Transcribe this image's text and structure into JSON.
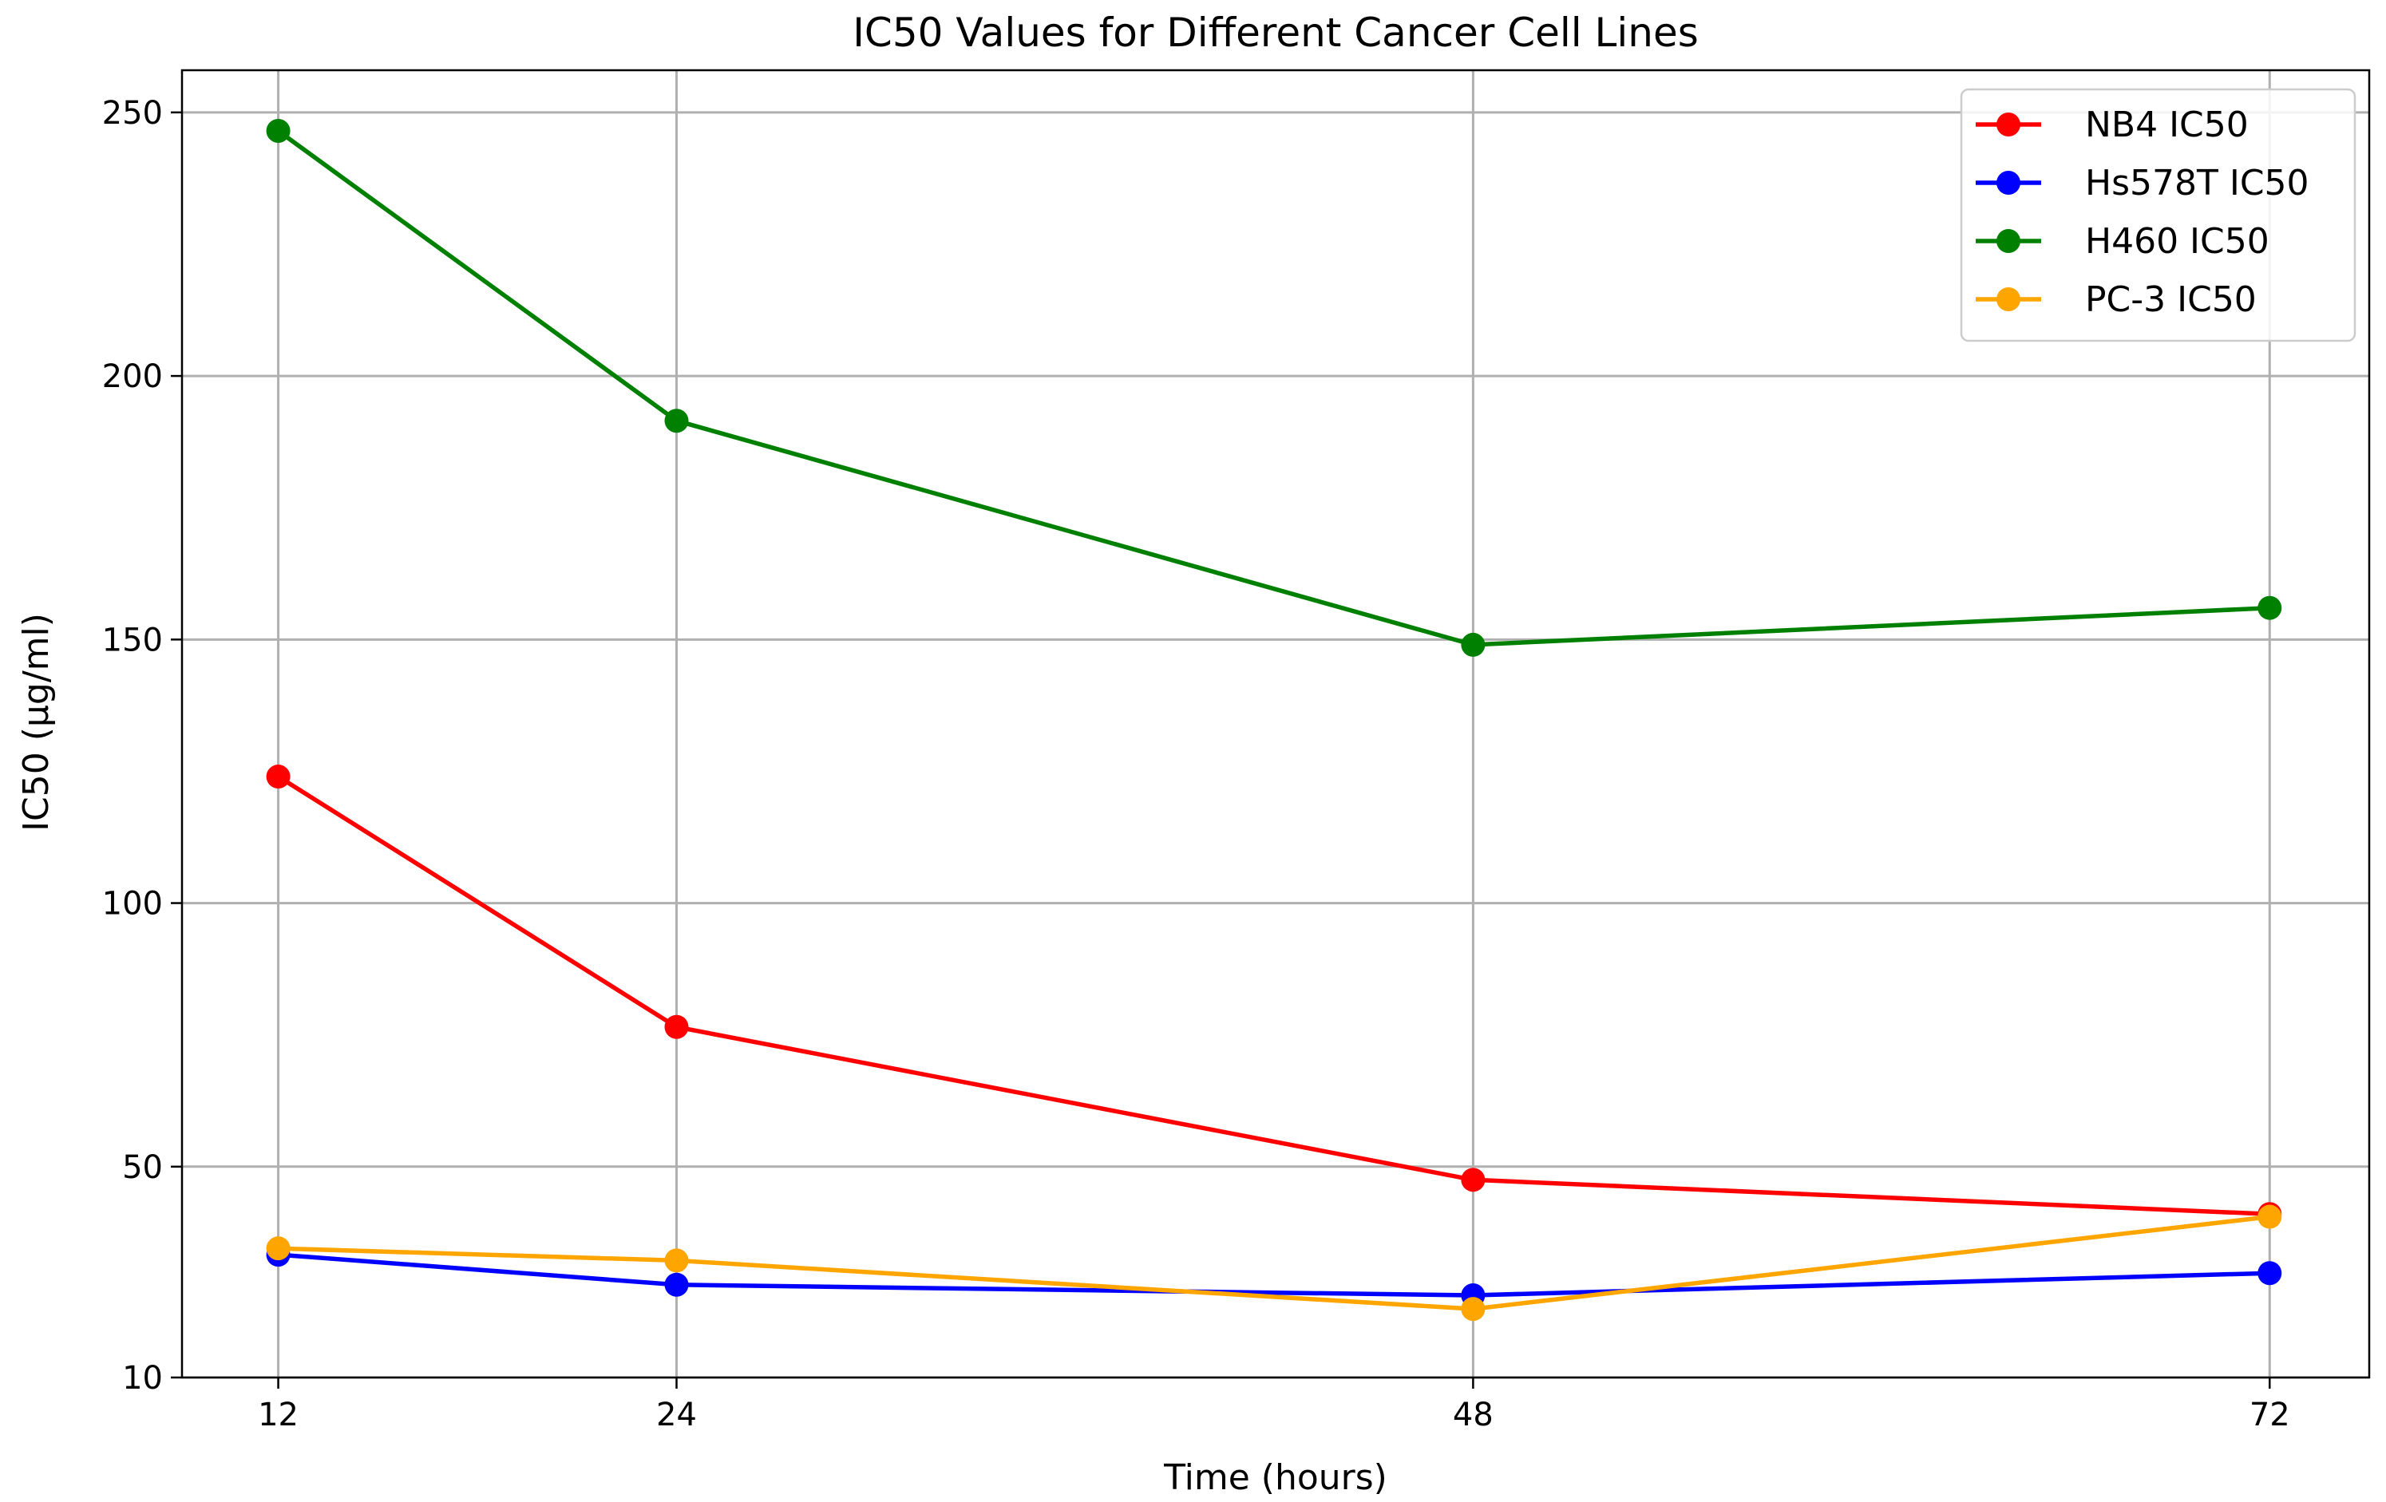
{
  "chart_data": {
    "type": "line",
    "title": "IC50 Values for Different Cancer Cell Lines",
    "xlabel": "Time (hours)",
    "ylabel": "IC50 (μg/ml)",
    "x": [
      12,
      24,
      48,
      72
    ],
    "xticks": [
      12,
      24,
      48,
      72
    ],
    "xlim": [
      9.1,
      75.0
    ],
    "yticks": [
      10,
      50,
      100,
      150,
      200,
      250
    ],
    "ylim": [
      10,
      258
    ],
    "grid": true,
    "legend_position": "top-right",
    "series": [
      {
        "name": "NB4 IC50",
        "color": "#ff0000",
        "values": [
          124,
          76.5,
          47.5,
          41
        ]
      },
      {
        "name": "Hs578T IC50",
        "color": "#0000ff",
        "values": [
          33.3,
          27.6,
          25.6,
          29.8
        ]
      },
      {
        "name": "H460 IC50",
        "color": "#008000",
        "values": [
          246.5,
          191.5,
          149,
          156
        ]
      },
      {
        "name": "PC-3 IC50",
        "color": "#ffa500",
        "values": [
          34.5,
          32.2,
          23,
          40.5
        ]
      }
    ]
  }
}
